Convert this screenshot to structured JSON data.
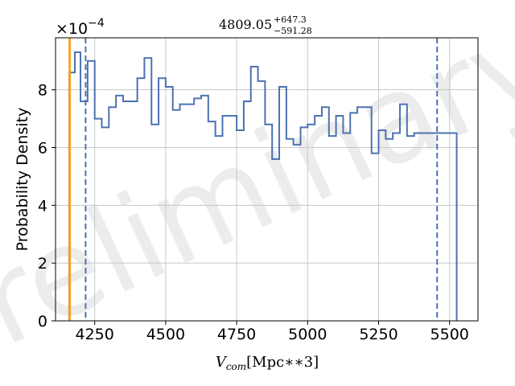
{
  "chart_data": {
    "type": "histogram",
    "title": {
      "main": "4809.05",
      "upper": "+647.3",
      "lower": "−591.28"
    },
    "xlabel": {
      "var": "V",
      "sub": "com",
      "units": "[Mpc∗∗3]"
    },
    "ylabel": "Probability Density",
    "y_multiplier": {
      "base": "×10",
      "exponent": "−4"
    },
    "xlim": [
      4112,
      5600
    ],
    "ylim": [
      0,
      0.00098
    ],
    "y_scale": 0.0001,
    "xticks": [
      4250,
      4500,
      4750,
      5000,
      5250,
      5500
    ],
    "yticks": [
      0,
      2,
      4,
      6,
      8
    ],
    "grid": true,
    "bin_edges": [
      4160,
      4180,
      4200,
      4225,
      4250,
      4275,
      4300,
      4325,
      4350,
      4375,
      4400,
      4425,
      4450,
      4475,
      4500,
      4525,
      4550,
      4575,
      4600,
      4625,
      4650,
      4675,
      4700,
      4725,
      4750,
      4775,
      4800,
      4825,
      4850,
      4875,
      4900,
      4925,
      4950,
      4975,
      5000,
      5025,
      5050,
      5075,
      5100,
      5125,
      5150,
      5175,
      5200,
      5225,
      5250,
      5275,
      5300,
      5325,
      5350,
      5375,
      5400,
      5425,
      5450,
      5475,
      5500,
      5525
    ],
    "values": [
      0.00086,
      0.00093,
      0.00076,
      0.0009,
      0.0007,
      0.00067,
      0.00074,
      0.00078,
      0.00076,
      0.00076,
      0.00084,
      0.00091,
      0.00068,
      0.00084,
      0.00081,
      0.00073,
      0.00075,
      0.00075,
      0.00077,
      0.00078,
      0.00069,
      0.00064,
      0.00071,
      0.00071,
      0.00066,
      0.00076,
      0.00088,
      0.00083,
      0.00068,
      0.00056,
      0.00081,
      0.00063,
      0.00061,
      0.00067,
      0.00068,
      0.00071,
      0.00074,
      0.00064,
      0.00071,
      0.00065,
      0.00072,
      0.00074,
      0.00074,
      0.00058,
      0.00066,
      0.00063,
      0.00065,
      0.00075,
      0.00064,
      0.00065,
      0.00065,
      0.00065,
      0.00065,
      0.00065,
      0.00065
    ],
    "vlines": [
      {
        "x": 4162,
        "style": "solid",
        "color": "#f5a623"
      },
      {
        "x": 4218,
        "style": "dashed",
        "color": "#4c72b0"
      },
      {
        "x": 5456,
        "style": "dashed",
        "color": "#4c72b0"
      }
    ],
    "watermark": "Preliminary",
    "colors": {
      "hist": "#4c72b0",
      "grid": "#c8c8c8",
      "truth": "#f5a623"
    }
  }
}
